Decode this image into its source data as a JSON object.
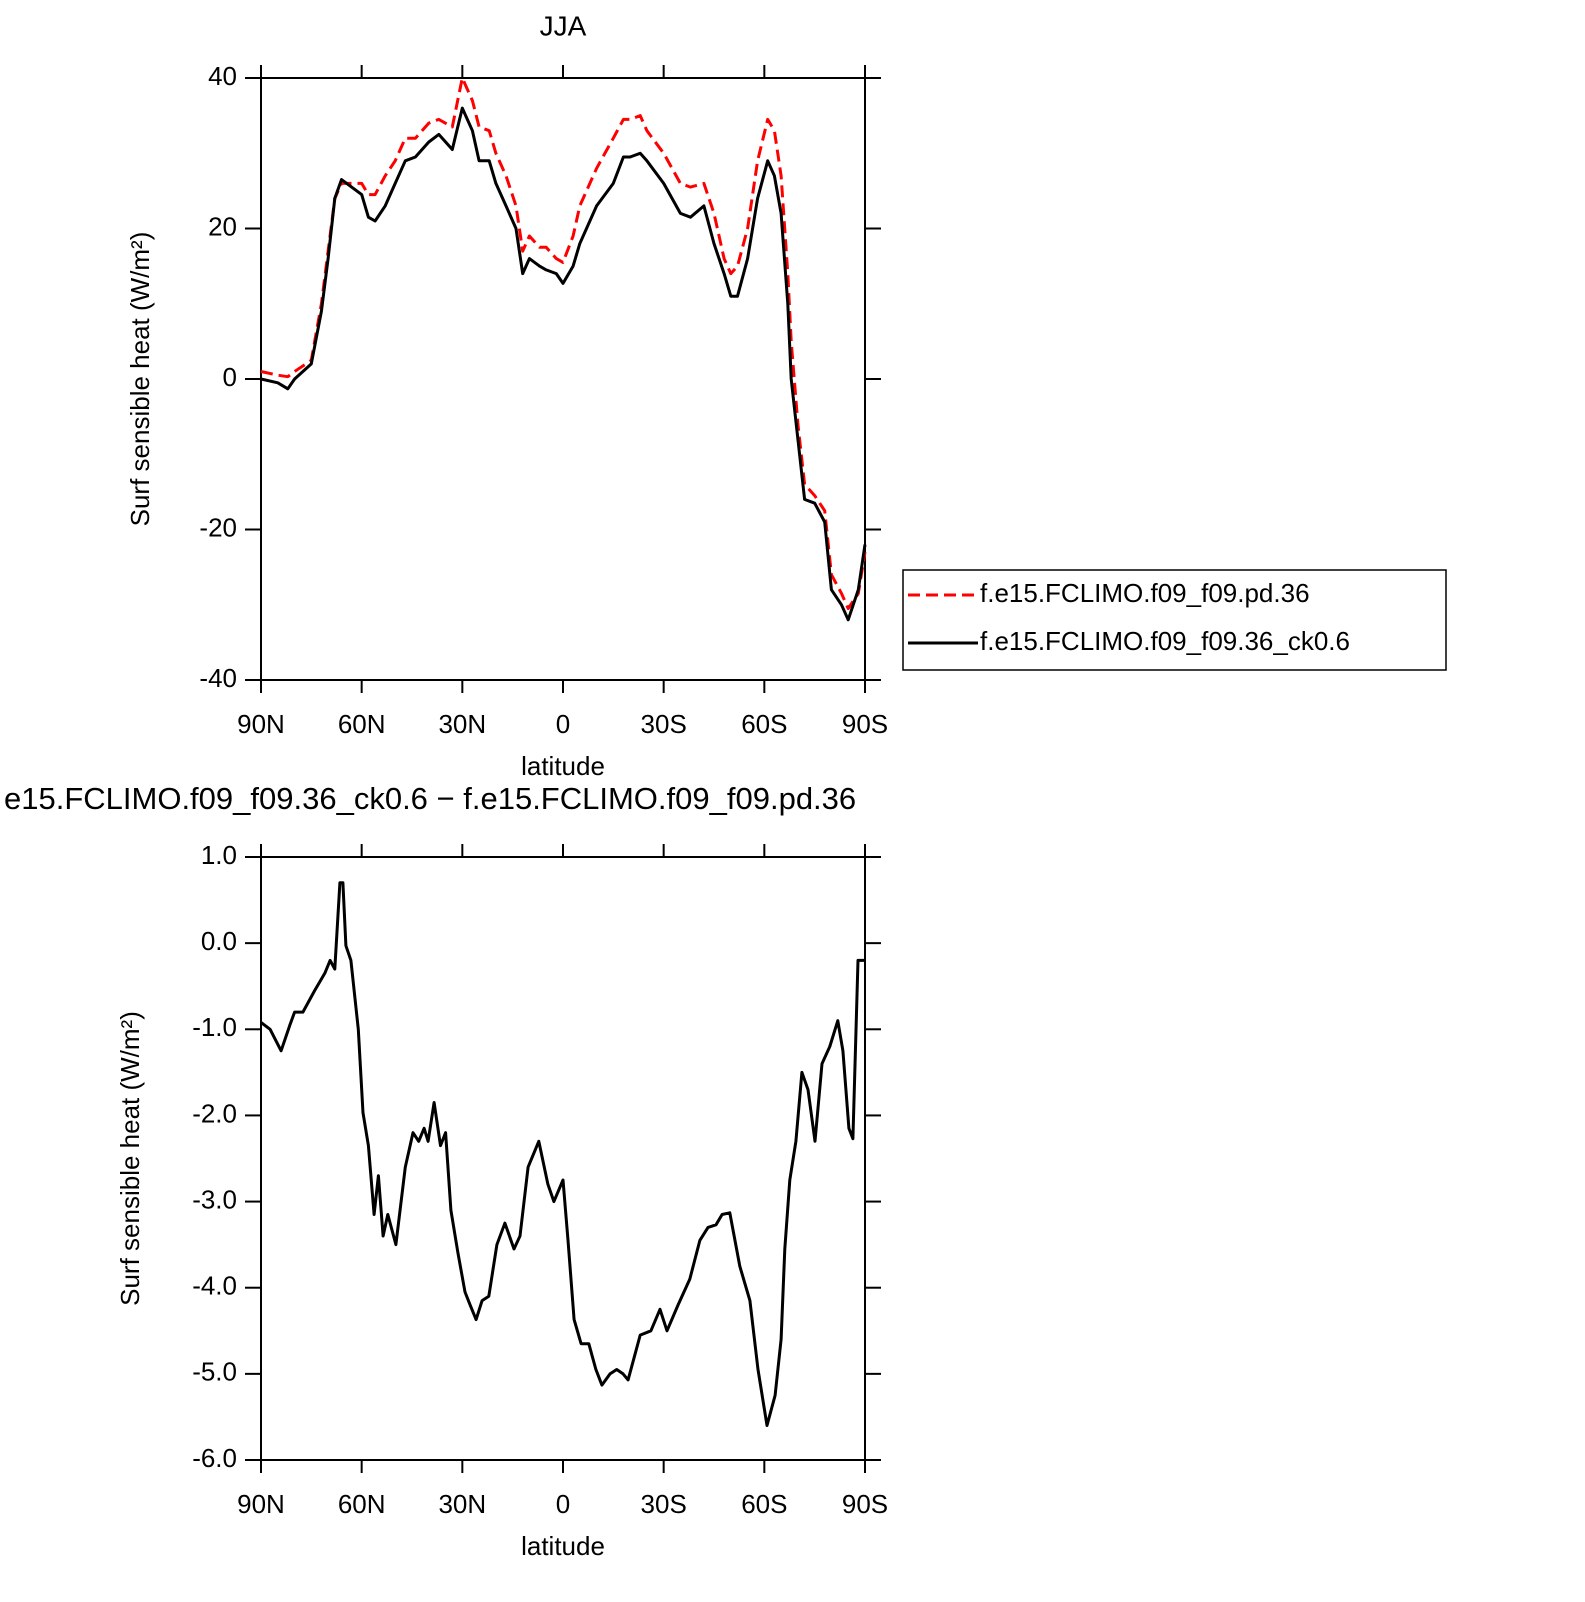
{
  "chart_data": [
    {
      "type": "line",
      "title": "JJA",
      "x_label": "latitude",
      "y_label": "Surf sensible heat (W/m²)",
      "x": [
        90,
        85,
        82,
        80,
        75,
        72,
        70,
        68,
        66,
        63,
        60,
        58,
        56,
        53,
        50,
        47,
        44,
        40,
        37,
        33,
        30,
        27,
        25,
        22,
        20,
        17,
        14,
        12,
        10,
        7,
        5,
        2,
        0,
        -3,
        -5,
        -10,
        -15,
        -18,
        -20,
        -23,
        -25,
        -30,
        -35,
        -38,
        -42,
        -45,
        -48,
        -50,
        -52,
        -55,
        -58,
        -61,
        -63,
        -65,
        -67,
        -68,
        -70,
        -72,
        -75,
        -78,
        -80,
        -83,
        -85,
        -88,
        -90
      ],
      "series": [
        {
          "name": "f.e15.FCLIMO.f09_f09.pd.36",
          "color": "#ff0000",
          "line_style": "dashed",
          "values": [
            1,
            0.5,
            0.3,
            1,
            2.5,
            10,
            17,
            24,
            26,
            26,
            26,
            24.5,
            24.5,
            27,
            29,
            32,
            32,
            34,
            34.5,
            33.5,
            40,
            37,
            33.5,
            33,
            30,
            27,
            23,
            17,
            19,
            17.5,
            17.5,
            16,
            15.5,
            19,
            23,
            28,
            32,
            34.5,
            34.5,
            35,
            33,
            30,
            26,
            25.5,
            26,
            22,
            16,
            14,
            15,
            20,
            29,
            34.5,
            33,
            27,
            14,
            5,
            -6,
            -14,
            -15.5,
            -17.5,
            -26,
            -28.5,
            -30.5,
            -28.5,
            -23
          ]
        },
        {
          "name": "f.e15.FCLIMO.f09_f09.36_ck0.6",
          "color": "#000000",
          "line_style": "solid",
          "values": [
            0,
            -0.5,
            -1.3,
            0,
            2,
            9,
            16,
            24,
            26.5,
            25.5,
            24.5,
            21.5,
            21,
            23,
            26,
            29,
            29.5,
            31.5,
            32.5,
            30.5,
            36,
            33,
            29,
            29,
            26,
            23,
            20,
            14,
            16,
            15,
            14.5,
            14,
            12.7,
            15,
            18,
            23,
            26,
            29.5,
            29.5,
            30,
            29,
            26,
            22,
            21.5,
            23,
            18,
            14,
            11,
            11,
            16,
            24,
            29,
            27,
            22,
            10,
            0,
            -8,
            -16,
            -16.5,
            -19,
            -28,
            -30,
            -32,
            -28,
            -22
          ]
        }
      ],
      "xlim": [
        90,
        -90
      ],
      "xticks": [
        {
          "value": 90,
          "label": "90N"
        },
        {
          "value": 60,
          "label": "60N"
        },
        {
          "value": 30,
          "label": "30N"
        },
        0,
        {
          "value": -30,
          "label": "30S"
        },
        {
          "value": -60,
          "label": "60S"
        },
        {
          "value": -90,
          "label": "90S"
        }
      ],
      "ylim": [
        -40,
        40
      ],
      "yticks": [
        40,
        20,
        0,
        -20,
        -40
      ],
      "legend": "right"
    },
    {
      "type": "line",
      "title": "e15.FCLIMO.f09_f09.36_ck0.6 − f.e15.FCLIMO.f09_f09.pd.36",
      "x_label": "latitude",
      "y_label": "Surf sensible heat (W/m²)",
      "x": [
        90,
        87.3,
        84,
        81.4,
        80,
        77.5,
        74,
        71,
        69.4,
        68,
        66.5,
        65.6,
        64.7,
        63.2,
        61,
        59.6,
        58,
        56.3,
        55,
        53.6,
        52.2,
        49.8,
        47,
        44.7,
        43,
        41.4,
        40.2,
        38.4,
        36.5,
        35,
        33.4,
        31.3,
        29.2,
        27.7,
        25.9,
        24.1,
        22.1,
        19.7,
        17.3,
        14.6,
        12.8,
        10.4,
        7.2,
        4.5,
        2.7,
        0,
        -1.5,
        -3.3,
        -5.4,
        -7.7,
        -9.8,
        -11.6,
        -14,
        -16,
        -17.9,
        -19.4,
        -23,
        -26.2,
        -28.9,
        -31,
        -34.3,
        -37.8,
        -40.8,
        -43.2,
        -45.6,
        -47.4,
        -49.7,
        -52.7,
        -55.7,
        -58.1,
        -60.8,
        -63.2,
        -65,
        -66.1,
        -67.6,
        -69.4,
        -71.2,
        -73,
        -75.1,
        -77.2,
        -79.5,
        -81.9,
        -83.4,
        -85.2,
        -86.4,
        -87.9,
        -90
      ],
      "series": [
        {
          "color": "#000000",
          "line_style": "solid",
          "values": [
            -0.92,
            -1.0,
            -1.25,
            -0.95,
            -0.8,
            -0.8,
            -0.55,
            -0.35,
            -0.2,
            -0.3,
            0.7,
            0.7,
            -0.03,
            -0.2,
            -1.0,
            -1.97,
            -2.35,
            -3.15,
            -2.7,
            -3.4,
            -3.15,
            -3.5,
            -2.6,
            -2.2,
            -2.3,
            -2.15,
            -2.3,
            -1.85,
            -2.35,
            -2.2,
            -3.1,
            -3.6,
            -4.05,
            -4.2,
            -4.37,
            -4.15,
            -4.1,
            -3.5,
            -3.25,
            -3.55,
            -3.4,
            -2.6,
            -2.3,
            -2.8,
            -3.0,
            -2.75,
            -3.45,
            -4.37,
            -4.65,
            -4.65,
            -4.95,
            -5.13,
            -5.0,
            -4.95,
            -5.0,
            -5.07,
            -4.55,
            -4.5,
            -4.25,
            -4.5,
            -4.2,
            -3.9,
            -3.45,
            -3.3,
            -3.27,
            -3.15,
            -3.13,
            -3.75,
            -4.15,
            -4.95,
            -5.6,
            -5.25,
            -4.6,
            -3.55,
            -2.75,
            -2.3,
            -1.5,
            -1.7,
            -2.3,
            -1.4,
            -1.2,
            -0.9,
            -1.25,
            -2.15,
            -2.27,
            -0.2,
            -0.2
          ]
        }
      ],
      "xlim": [
        90,
        -90
      ],
      "xticks": [
        {
          "value": 90,
          "label": "90N"
        },
        {
          "value": 60,
          "label": "60N"
        },
        {
          "value": 30,
          "label": "30N"
        },
        0,
        {
          "value": -30,
          "label": "30S"
        },
        {
          "value": -60,
          "label": "60S"
        },
        {
          "value": -90,
          "label": "90S"
        }
      ],
      "ylim": [
        -6,
        1
      ],
      "yticks": [
        {
          "value": 1,
          "label": "1.0"
        },
        {
          "value": 0,
          "label": "0.0"
        },
        {
          "value": -1,
          "label": "-1.0"
        },
        {
          "value": -2,
          "label": "-2.0"
        },
        {
          "value": -3,
          "label": "-3.0"
        },
        {
          "value": -4,
          "label": "-4.0"
        },
        {
          "value": -5,
          "label": "-5.0"
        },
        {
          "value": -6,
          "label": "-6.0"
        }
      ]
    }
  ]
}
